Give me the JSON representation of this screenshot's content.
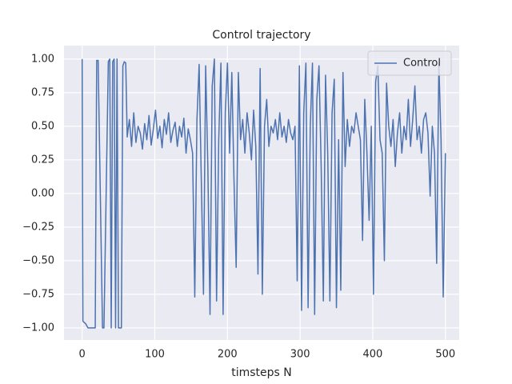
{
  "chart_data": {
    "type": "line",
    "title": "Control trajectory",
    "xlabel": "timsteps N",
    "x": [
      0,
      1,
      3,
      5,
      8,
      10,
      18,
      20,
      22,
      28,
      30,
      36,
      38,
      40,
      42,
      44,
      46,
      48,
      50,
      54,
      56,
      58,
      60,
      62,
      65,
      68,
      71,
      74,
      77,
      80,
      83,
      86,
      89,
      92,
      95,
      98,
      101,
      104,
      107,
      110,
      113,
      116,
      119,
      122,
      125,
      128,
      131,
      134,
      137,
      140,
      143,
      146,
      149,
      152,
      155,
      158,
      161,
      164,
      167,
      170,
      173,
      176,
      179,
      182,
      185,
      188,
      191,
      194,
      197,
      200,
      203,
      206,
      209,
      212,
      215,
      218,
      221,
      224,
      227,
      230,
      233,
      236,
      239,
      242,
      245,
      248,
      251,
      254,
      257,
      260,
      263,
      266,
      269,
      272,
      275,
      278,
      281,
      284,
      287,
      290,
      293,
      296,
      299,
      302,
      305,
      308,
      311,
      314,
      317,
      320,
      323,
      326,
      329,
      332,
      335,
      338,
      341,
      344,
      347,
      350,
      353,
      356,
      359,
      362,
      365,
      368,
      371,
      374,
      377,
      380,
      383,
      386,
      389,
      392,
      395,
      398,
      401,
      404,
      407,
      410,
      413,
      416,
      419,
      422,
      425,
      428,
      431,
      434,
      437,
      440,
      443,
      446,
      449,
      452,
      455,
      458,
      461,
      464,
      467,
      470,
      473,
      476,
      479,
      482,
      485,
      488,
      491,
      494,
      497,
      500
    ],
    "series": [
      {
        "name": "Control",
        "color": "#4c72b0",
        "values": [
          1.0,
          -0.95,
          -0.96,
          -0.97,
          -1.0,
          -1.0,
          -1.0,
          0.99,
          0.99,
          -1.0,
          -1.0,
          0.98,
          1.0,
          -1.0,
          0.98,
          1.0,
          -1.0,
          1.0,
          -1.0,
          -1.0,
          0.95,
          0.98,
          0.97,
          0.42,
          0.55,
          0.35,
          0.6,
          0.38,
          0.5,
          0.45,
          0.33,
          0.52,
          0.4,
          0.58,
          0.36,
          0.48,
          0.62,
          0.41,
          0.5,
          0.34,
          0.55,
          0.44,
          0.6,
          0.38,
          0.47,
          0.53,
          0.35,
          0.5,
          0.42,
          0.56,
          0.3,
          0.48,
          0.4,
          0.3,
          -0.77,
          0.55,
          0.96,
          0.1,
          -0.75,
          0.95,
          0.2,
          -0.9,
          0.8,
          1.0,
          -0.8,
          0.4,
          0.97,
          -0.9,
          0.6,
          0.97,
          0.3,
          0.9,
          0.1,
          -0.55,
          0.9,
          0.4,
          0.55,
          0.3,
          0.6,
          0.45,
          0.25,
          0.62,
          0.35,
          -0.6,
          0.93,
          -0.75,
          0.5,
          0.7,
          0.35,
          0.5,
          0.45,
          0.55,
          0.4,
          0.6,
          0.42,
          0.5,
          0.38,
          0.55,
          0.45,
          0.4,
          0.5,
          -0.65,
          0.95,
          -0.87,
          0.6,
          0.97,
          -0.85,
          0.5,
          0.97,
          -0.9,
          0.7,
          0.95,
          0.2,
          -0.8,
          0.88,
          0.3,
          -0.8,
          0.6,
          0.85,
          -0.85,
          0.4,
          -0.72,
          0.9,
          0.2,
          0.55,
          0.35,
          0.5,
          0.45,
          0.6,
          0.5,
          0.4,
          -0.35,
          0.7,
          0.3,
          -0.2,
          0.5,
          -0.75,
          0.83,
          0.95,
          0.4,
          0.3,
          -0.5,
          0.82,
          0.5,
          0.35,
          0.55,
          0.2,
          0.45,
          0.6,
          0.3,
          0.5,
          0.4,
          0.7,
          0.35,
          0.55,
          0.8,
          0.4,
          0.5,
          0.3,
          0.55,
          0.6,
          0.45,
          -0.02,
          0.5,
          0.3,
          -0.52,
          0.97,
          0.4,
          -0.77,
          0.3
        ]
      }
    ],
    "xlim": [
      -25,
      519
    ],
    "xticks": [
      0,
      100,
      200,
      300,
      400,
      500
    ],
    "ylim": [
      -1.09,
      1.1
    ],
    "yticks": [
      {
        "value": -1,
        "label": "−1.00"
      },
      {
        "value": -0.75,
        "label": "−0.75"
      },
      {
        "value": -0.5,
        "label": "−0.50"
      },
      {
        "value": -0.25,
        "label": "−0.25"
      },
      {
        "value": 0,
        "label": "0.00"
      },
      {
        "value": 0.25,
        "label": "0.25"
      },
      {
        "value": 0.5,
        "label": "0.50"
      },
      {
        "value": 0.75,
        "label": "0.75"
      },
      {
        "value": 1,
        "label": "1.00"
      }
    ],
    "grid": true,
    "legend": "upper right"
  }
}
